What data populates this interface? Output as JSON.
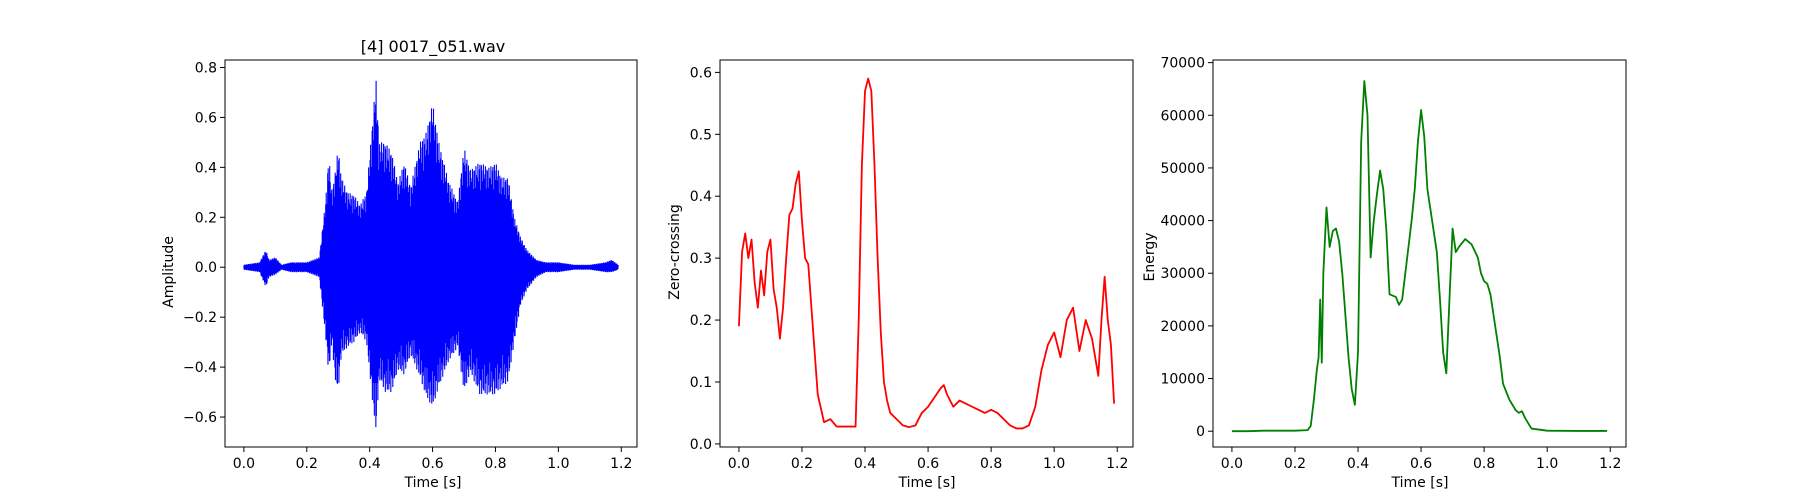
{
  "chart_data": [
    {
      "type": "line",
      "title": "[4] 0017_051.wav",
      "xlabel": "Time [s]",
      "ylabel": "Amplitude",
      "xlim": [
        -0.06,
        1.25
      ],
      "ylim": [
        -0.72,
        0.83
      ],
      "xticks": [
        0.0,
        0.2,
        0.4,
        0.6,
        0.8,
        1.0,
        1.2
      ],
      "xtick_labels": [
        "0.0",
        "0.2",
        "0.4",
        "0.6",
        "0.8",
        "1.0",
        "1.2"
      ],
      "yticks": [
        -0.6,
        -0.4,
        -0.2,
        0.0,
        0.2,
        0.4,
        0.6,
        0.8
      ],
      "ytick_labels": [
        "−0.6",
        "−0.4",
        "−0.2",
        "0.0",
        "0.2",
        "0.4",
        "0.6",
        "0.8"
      ],
      "grid": false,
      "legend": "none",
      "color": "#0000ff",
      "series": [
        {
          "style": "envelope",
          "x": [
            0.0,
            0.05,
            0.07,
            0.08,
            0.1,
            0.12,
            0.15,
            0.2,
            0.24,
            0.26,
            0.27,
            0.28,
            0.29,
            0.3,
            0.31,
            0.33,
            0.35,
            0.37,
            0.39,
            0.41,
            0.42,
            0.43,
            0.45,
            0.47,
            0.49,
            0.51,
            0.53,
            0.56,
            0.58,
            0.6,
            0.62,
            0.65,
            0.68,
            0.7,
            0.72,
            0.75,
            0.78,
            0.8,
            0.82,
            0.84,
            0.86,
            0.88,
            0.9,
            0.93,
            0.96,
            1.0,
            1.05,
            1.1,
            1.15,
            1.17,
            1.19
          ],
          "upper": [
            0.01,
            0.02,
            0.07,
            0.03,
            0.04,
            0.01,
            0.02,
            0.02,
            0.04,
            0.27,
            0.45,
            0.3,
            0.38,
            0.48,
            0.36,
            0.3,
            0.29,
            0.25,
            0.3,
            0.6,
            0.76,
            0.5,
            0.5,
            0.46,
            0.34,
            0.42,
            0.32,
            0.5,
            0.54,
            0.66,
            0.5,
            0.35,
            0.26,
            0.48,
            0.39,
            0.42,
            0.4,
            0.42,
            0.36,
            0.36,
            0.2,
            0.12,
            0.07,
            0.03,
            0.02,
            0.02,
            0.01,
            0.01,
            0.02,
            0.03,
            0.01
          ],
          "lower": [
            -0.01,
            -0.02,
            -0.08,
            -0.04,
            -0.03,
            -0.01,
            -0.02,
            -0.02,
            -0.04,
            -0.28,
            -0.43,
            -0.3,
            -0.45,
            -0.5,
            -0.35,
            -0.32,
            -0.3,
            -0.26,
            -0.3,
            -0.55,
            -0.66,
            -0.45,
            -0.5,
            -0.5,
            -0.41,
            -0.43,
            -0.35,
            -0.44,
            -0.52,
            -0.56,
            -0.48,
            -0.38,
            -0.32,
            -0.5,
            -0.42,
            -0.51,
            -0.51,
            -0.51,
            -0.48,
            -0.46,
            -0.3,
            -0.15,
            -0.09,
            -0.04,
            -0.02,
            -0.02,
            -0.01,
            -0.01,
            -0.02,
            -0.02,
            -0.01
          ]
        }
      ]
    },
    {
      "type": "line",
      "title": "",
      "xlabel": "Time [s]",
      "ylabel": "Zero-crossing",
      "xlim": [
        -0.06,
        1.25
      ],
      "ylim": [
        -0.005,
        0.62
      ],
      "xticks": [
        0.0,
        0.2,
        0.4,
        0.6,
        0.8,
        1.0,
        1.2
      ],
      "xtick_labels": [
        "0.0",
        "0.2",
        "0.4",
        "0.6",
        "0.8",
        "1.0",
        "1.2"
      ],
      "yticks": [
        0.0,
        0.1,
        0.2,
        0.3,
        0.4,
        0.5,
        0.6
      ],
      "ytick_labels": [
        "0.0",
        "0.1",
        "0.2",
        "0.3",
        "0.4",
        "0.5",
        "0.6"
      ],
      "grid": false,
      "legend": "none",
      "color": "#ff0000",
      "series": [
        {
          "x": [
            0.0,
            0.01,
            0.02,
            0.03,
            0.04,
            0.05,
            0.06,
            0.07,
            0.08,
            0.09,
            0.1,
            0.11,
            0.12,
            0.13,
            0.14,
            0.15,
            0.16,
            0.17,
            0.18,
            0.19,
            0.2,
            0.21,
            0.22,
            0.23,
            0.24,
            0.25,
            0.27,
            0.29,
            0.31,
            0.33,
            0.35,
            0.37,
            0.38,
            0.39,
            0.4,
            0.41,
            0.42,
            0.43,
            0.44,
            0.45,
            0.46,
            0.47,
            0.48,
            0.5,
            0.52,
            0.54,
            0.56,
            0.58,
            0.6,
            0.62,
            0.64,
            0.65,
            0.66,
            0.68,
            0.7,
            0.72,
            0.74,
            0.76,
            0.78,
            0.8,
            0.82,
            0.84,
            0.86,
            0.88,
            0.9,
            0.92,
            0.94,
            0.96,
            0.98,
            1.0,
            1.02,
            1.04,
            1.06,
            1.08,
            1.1,
            1.12,
            1.14,
            1.15,
            1.16,
            1.17,
            1.18,
            1.19
          ],
          "y": [
            0.19,
            0.31,
            0.34,
            0.3,
            0.33,
            0.26,
            0.22,
            0.28,
            0.24,
            0.31,
            0.33,
            0.25,
            0.22,
            0.17,
            0.22,
            0.3,
            0.37,
            0.38,
            0.42,
            0.44,
            0.36,
            0.3,
            0.29,
            0.22,
            0.15,
            0.08,
            0.035,
            0.04,
            0.028,
            0.028,
            0.028,
            0.028,
            0.2,
            0.45,
            0.57,
            0.59,
            0.57,
            0.45,
            0.3,
            0.18,
            0.1,
            0.07,
            0.05,
            0.04,
            0.03,
            0.027,
            0.03,
            0.05,
            0.06,
            0.075,
            0.09,
            0.095,
            0.08,
            0.06,
            0.07,
            0.065,
            0.06,
            0.055,
            0.05,
            0.055,
            0.05,
            0.04,
            0.03,
            0.025,
            0.025,
            0.03,
            0.06,
            0.12,
            0.16,
            0.18,
            0.14,
            0.2,
            0.22,
            0.15,
            0.2,
            0.17,
            0.11,
            0.2,
            0.27,
            0.2,
            0.16,
            0.065
          ]
        }
      ]
    },
    {
      "type": "line",
      "title": "",
      "xlabel": "Time [s]",
      "ylabel": "Energy",
      "xlim": [
        -0.06,
        1.25
      ],
      "ylim": [
        -3000,
        70500
      ],
      "xticks": [
        0.0,
        0.2,
        0.4,
        0.6,
        0.8,
        1.0,
        1.2
      ],
      "xtick_labels": [
        "0.0",
        "0.2",
        "0.4",
        "0.6",
        "0.8",
        "1.0",
        "1.2"
      ],
      "yticks": [
        0,
        10000,
        20000,
        30000,
        40000,
        50000,
        60000,
        70000
      ],
      "ytick_labels": [
        "0",
        "10000",
        "20000",
        "30000",
        "40000",
        "50000",
        "60000",
        "70000"
      ],
      "grid": false,
      "legend": "none",
      "color": "#008000",
      "series": [
        {
          "x": [
            0.0,
            0.05,
            0.1,
            0.15,
            0.2,
            0.24,
            0.25,
            0.26,
            0.27,
            0.275,
            0.28,
            0.285,
            0.29,
            0.3,
            0.31,
            0.32,
            0.33,
            0.34,
            0.35,
            0.36,
            0.37,
            0.38,
            0.39,
            0.4,
            0.41,
            0.42,
            0.43,
            0.44,
            0.45,
            0.46,
            0.47,
            0.48,
            0.49,
            0.5,
            0.52,
            0.53,
            0.54,
            0.55,
            0.56,
            0.57,
            0.58,
            0.59,
            0.6,
            0.61,
            0.62,
            0.63,
            0.64,
            0.65,
            0.66,
            0.67,
            0.68,
            0.69,
            0.7,
            0.71,
            0.72,
            0.74,
            0.76,
            0.78,
            0.79,
            0.8,
            0.81,
            0.82,
            0.83,
            0.84,
            0.85,
            0.86,
            0.88,
            0.9,
            0.91,
            0.92,
            0.93,
            0.95,
            1.0,
            1.1,
            1.19
          ],
          "y": [
            0,
            0,
            100,
            100,
            100,
            200,
            1000,
            6000,
            12000,
            14000,
            25000,
            13000,
            30000,
            42500,
            35000,
            38000,
            38500,
            36000,
            30000,
            22000,
            14000,
            8000,
            5000,
            15000,
            55000,
            66500,
            60000,
            33000,
            40000,
            45000,
            49500,
            46000,
            38000,
            26000,
            25500,
            24000,
            25000,
            30000,
            35000,
            40000,
            46000,
            55000,
            61000,
            56000,
            46000,
            42000,
            38000,
            34000,
            25000,
            15000,
            11000,
            25000,
            38500,
            34000,
            35000,
            36500,
            35500,
            33000,
            30000,
            28500,
            28000,
            26000,
            22000,
            18000,
            14000,
            9000,
            6000,
            4000,
            3500,
            3800,
            2500,
            500,
            100,
            50,
            50
          ]
        }
      ]
    }
  ]
}
